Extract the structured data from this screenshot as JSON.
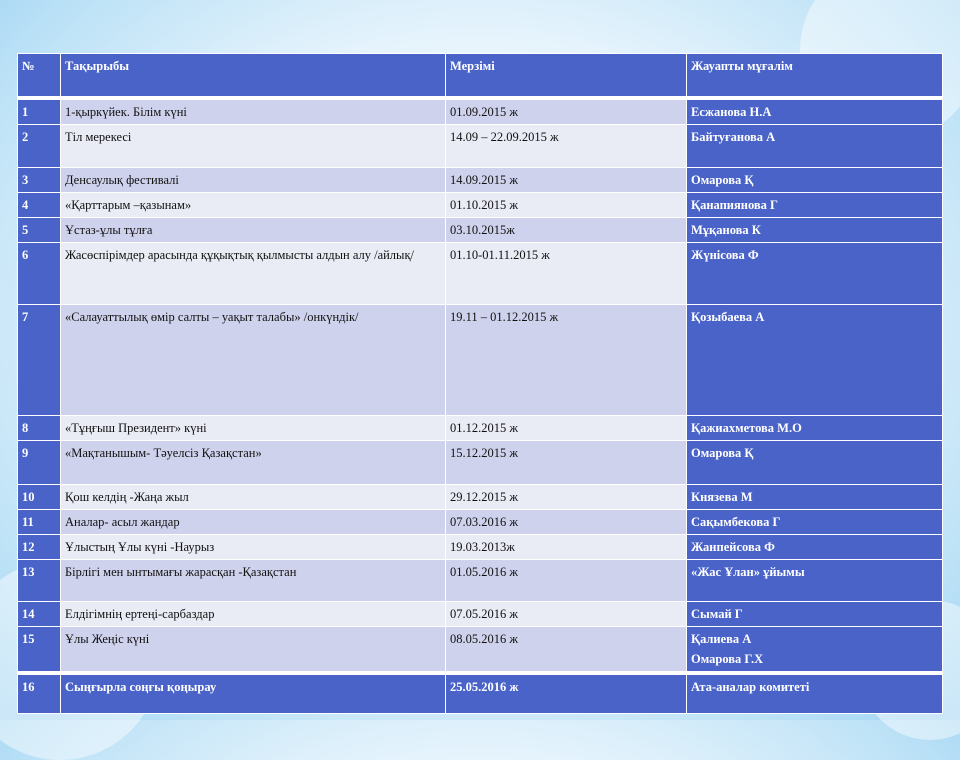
{
  "table": {
    "headers": [
      "№",
      "Тақырыбы",
      "Мерзімі",
      "Жауапты мұғалім"
    ],
    "rows": [
      {
        "num": "1",
        "topic": "1-қыркүйек. Білім күні",
        "date": "01.09.2015 ж",
        "resp": "Есжанова Н.А"
      },
      {
        "num": "2",
        "topic": "Тіл мерекесі",
        "date": "14.09 – 22.09.2015 ж",
        "resp": "Байтуғанова А"
      },
      {
        "num": "3",
        "topic": "Денсаулық фестивалі",
        "date": "14.09.2015 ж",
        "resp": "Омарова Қ"
      },
      {
        "num": "4",
        "topic": "«Қарттарым –қазынам»",
        "date": "01.10.2015 ж",
        "resp": "Қанапиянова Г"
      },
      {
        "num": "5",
        "topic": "Ұстаз-ұлы тұлға",
        "date": "03.10.2015ж",
        "resp": "Мұқанова К"
      },
      {
        "num": "6",
        "topic": "Жасөспірімдер арасында құқықтық қылмысты алдын алу /айлық/",
        "date": "01.10-01.11.2015 ж",
        "resp": "Жүнісова Ф"
      },
      {
        "num": "7",
        "topic": "«Салауаттылық өмір салты – уақыт талабы» /онкүндік/",
        "date": "19.11 – 01.12.2015 ж",
        "resp": "Қозыбаева А"
      },
      {
        "num": "8",
        "topic": "«Тұңғыш Президент» күні",
        "date": "01.12.2015 ж",
        "resp": "Қажиахметова М.О"
      },
      {
        "num": "9",
        "topic": "«Мақтанышым- Тәуелсіз Қазақстан»",
        "date": "15.12.2015 ж",
        "resp": "Омарова Қ"
      },
      {
        "num": "10",
        "topic": "Қош келдің -Жаңа жыл",
        "date": "29.12.2015 ж",
        "resp": "Князева М"
      },
      {
        "num": "11",
        "topic": "Аналар- асыл жандар",
        "date": "07.03.2016 ж",
        "resp": "Сақымбекова Г"
      },
      {
        "num": "12",
        "topic": "Ұлыстың Ұлы күні -Наурыз",
        "date": "19.03.2013ж",
        "resp": "Жанпейсова Ф"
      },
      {
        "num": "13",
        "topic": "Бірлігі мен ынтымағы жарасқан -Қазақстан",
        "date": "01.05.2016 ж",
        "resp": "«Жас Ұлан» ұйымы"
      },
      {
        "num": "14",
        "topic": "Елдігімнің ертеңі-сарбаздар",
        "date": "07.05.2016 ж",
        "resp": "Сымай Г"
      },
      {
        "num": "15",
        "topic": "Ұлы Жеңіс күні",
        "date": "08.05.2016 ж",
        "resp": "Қалиева А",
        "resp2": "Омарова Г.Х"
      },
      {
        "num": "16",
        "topic": "Сыңғырла соңғы қоңырау",
        "date": "25.05.2016 ж",
        "resp": "Ата-аналар комитеті"
      }
    ]
  },
  "colors": {
    "header_blue": "#4a63c8",
    "row_dark": "#cfd2ec",
    "row_light": "#e9ebf5"
  }
}
